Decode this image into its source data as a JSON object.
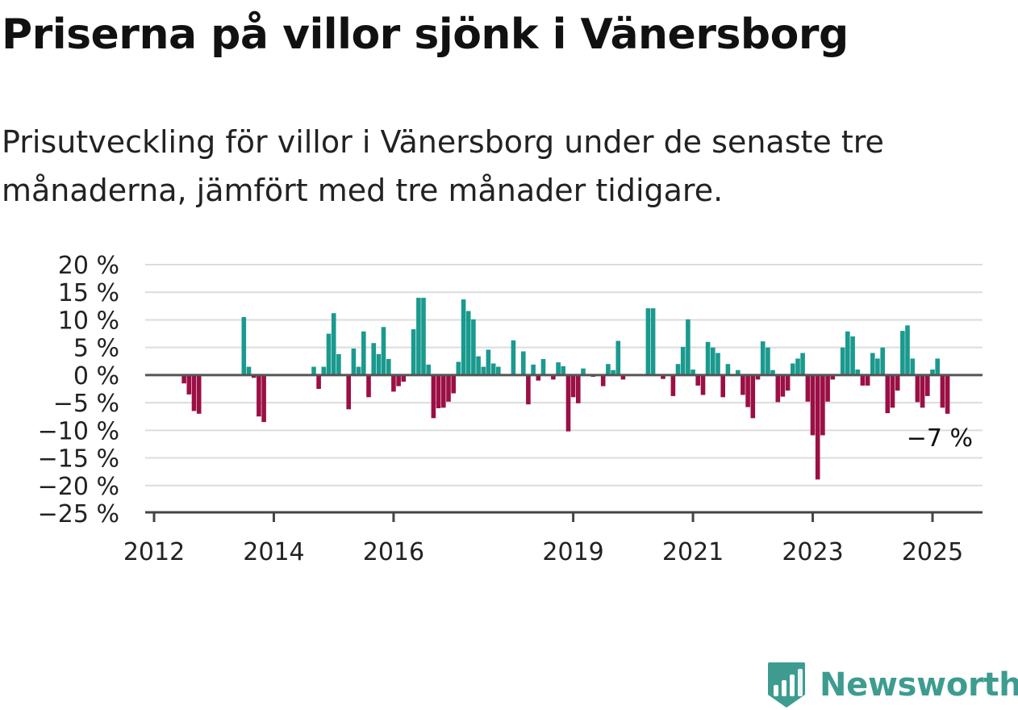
{
  "title": "Priserna på villor sjönk i Vänersborg",
  "subtitle": "Prisutveckling för villor i Vänersborg under de senaste tre månaderna, jämfört med tre månader tidigare.",
  "brand": {
    "name": "Newsworthy",
    "icon": "newsworthy-logo-icon"
  },
  "colors": {
    "positive": "#1a9a8e",
    "negative": "#9b0f45",
    "brand": "#3d9c8f",
    "grid": "#dcdcdc",
    "axis": "#444444"
  },
  "chart_data": {
    "type": "bar",
    "x_unit": "year",
    "y_unit": "%",
    "ylim": [
      -25,
      20
    ],
    "y_ticks": [
      {
        "value": 20,
        "label": "20 %"
      },
      {
        "value": 15,
        "label": "15 %"
      },
      {
        "value": 10,
        "label": "10 %"
      },
      {
        "value": 5,
        "label": "5 %"
      },
      {
        "value": 0,
        "label": "0 %"
      },
      {
        "value": -5,
        "label": "−5 %"
      },
      {
        "value": -10,
        "label": "−10 %"
      },
      {
        "value": -15,
        "label": "−15 %"
      },
      {
        "value": -20,
        "label": "−20 %"
      },
      {
        "value": -25,
        "label": "−25 %"
      }
    ],
    "x_ticks": [
      {
        "value": 2012,
        "label": "2012"
      },
      {
        "value": 2014,
        "label": "2014"
      },
      {
        "value": 2016,
        "label": "2016"
      },
      {
        "value": 2019,
        "label": "2019"
      },
      {
        "value": 2021,
        "label": "2021"
      },
      {
        "value": 2023,
        "label": "2023"
      },
      {
        "value": 2025,
        "label": "2025"
      }
    ],
    "grid": true,
    "last_value_label": "−7 %",
    "points": [
      [
        2012.5,
        -1.5
      ],
      [
        2012.583,
        -3.5
      ],
      [
        2012.667,
        -6.5
      ],
      [
        2012.75,
        -7
      ],
      [
        2013.5,
        10.5
      ],
      [
        2013.583,
        1.5
      ],
      [
        2013.667,
        -0.5
      ],
      [
        2013.75,
        -7.5
      ],
      [
        2013.833,
        -8.5
      ],
      [
        2014.667,
        1.5
      ],
      [
        2014.75,
        -2.5
      ],
      [
        2014.833,
        1.5
      ],
      [
        2014.917,
        7.5
      ],
      [
        2015.0,
        11.2
      ],
      [
        2015.083,
        3.8
      ],
      [
        2015.25,
        -6.2
      ],
      [
        2015.333,
        4.8
      ],
      [
        2015.417,
        1.5
      ],
      [
        2015.5,
        7.9
      ],
      [
        2015.583,
        -4
      ],
      [
        2015.667,
        5.8
      ],
      [
        2015.75,
        3.8
      ],
      [
        2015.833,
        8.7
      ],
      [
        2015.917,
        2.9
      ],
      [
        2016.0,
        -3
      ],
      [
        2016.083,
        -2
      ],
      [
        2016.167,
        -1.2
      ],
      [
        2016.333,
        8.3
      ],
      [
        2016.417,
        14
      ],
      [
        2016.5,
        14
      ],
      [
        2016.583,
        1.9
      ],
      [
        2016.667,
        -7.8
      ],
      [
        2016.75,
        -6
      ],
      [
        2016.833,
        -5.9
      ],
      [
        2016.917,
        -4.8
      ],
      [
        2017.0,
        -3.3
      ],
      [
        2017.083,
        2.4
      ],
      [
        2017.167,
        13.7
      ],
      [
        2017.25,
        11.6
      ],
      [
        2017.333,
        10.1
      ],
      [
        2017.417,
        3.4
      ],
      [
        2017.5,
        1.5
      ],
      [
        2017.583,
        4.6
      ],
      [
        2017.667,
        2.1
      ],
      [
        2017.75,
        1.5
      ],
      [
        2018.0,
        6.3
      ],
      [
        2018.167,
        4.3
      ],
      [
        2018.25,
        -5.3
      ],
      [
        2018.333,
        1.9
      ],
      [
        2018.417,
        -1
      ],
      [
        2018.5,
        2.9
      ],
      [
        2018.667,
        -0.8
      ],
      [
        2018.75,
        2.3
      ],
      [
        2018.833,
        1.6
      ],
      [
        2018.917,
        -10.2
      ],
      [
        2019.0,
        -4
      ],
      [
        2019.083,
        -5.1
      ],
      [
        2019.167,
        1.2
      ],
      [
        2019.333,
        -0.3
      ],
      [
        2019.5,
        -2
      ],
      [
        2019.583,
        2
      ],
      [
        2019.667,
        0.9
      ],
      [
        2019.75,
        6.2
      ],
      [
        2019.833,
        -0.8
      ],
      [
        2020.25,
        12.1
      ],
      [
        2020.333,
        12.1
      ],
      [
        2020.5,
        -0.7
      ],
      [
        2020.667,
        -3.8
      ],
      [
        2020.75,
        2
      ],
      [
        2020.833,
        5.1
      ],
      [
        2020.917,
        10.1
      ],
      [
        2021.0,
        1
      ],
      [
        2021.083,
        -1.9
      ],
      [
        2021.167,
        -3.6
      ],
      [
        2021.25,
        6
      ],
      [
        2021.333,
        5
      ],
      [
        2021.417,
        4
      ],
      [
        2021.5,
        -4
      ],
      [
        2021.583,
        2
      ],
      [
        2021.75,
        0.9
      ],
      [
        2021.833,
        -3.6
      ],
      [
        2021.917,
        -5.8
      ],
      [
        2022.0,
        -7.8
      ],
      [
        2022.083,
        -0.8
      ],
      [
        2022.167,
        6.1
      ],
      [
        2022.25,
        5
      ],
      [
        2022.333,
        0.9
      ],
      [
        2022.417,
        -4.9
      ],
      [
        2022.5,
        -3.9
      ],
      [
        2022.583,
        -2.8
      ],
      [
        2022.667,
        2.1
      ],
      [
        2022.75,
        3
      ],
      [
        2022.833,
        4
      ],
      [
        2022.917,
        -4.8
      ],
      [
        2023.0,
        -10.9
      ],
      [
        2023.083,
        -18.9
      ],
      [
        2023.167,
        -10.9
      ],
      [
        2023.25,
        -4.8
      ],
      [
        2023.333,
        -0.8
      ],
      [
        2023.5,
        5
      ],
      [
        2023.583,
        7.9
      ],
      [
        2023.667,
        7
      ],
      [
        2023.75,
        1
      ],
      [
        2023.833,
        -1.9
      ],
      [
        2023.917,
        -1.9
      ],
      [
        2024.0,
        4
      ],
      [
        2024.083,
        3
      ],
      [
        2024.167,
        5
      ],
      [
        2024.25,
        -6.9
      ],
      [
        2024.333,
        -5.9
      ],
      [
        2024.417,
        -2.8
      ],
      [
        2024.5,
        8
      ],
      [
        2024.583,
        9
      ],
      [
        2024.667,
        3
      ],
      [
        2024.75,
        -4.9
      ],
      [
        2024.833,
        -5.9
      ],
      [
        2024.917,
        -3.8
      ],
      [
        2025.0,
        1
      ],
      [
        2025.083,
        3
      ],
      [
        2025.167,
        -5.9
      ],
      [
        2025.25,
        -7
      ]
    ]
  }
}
